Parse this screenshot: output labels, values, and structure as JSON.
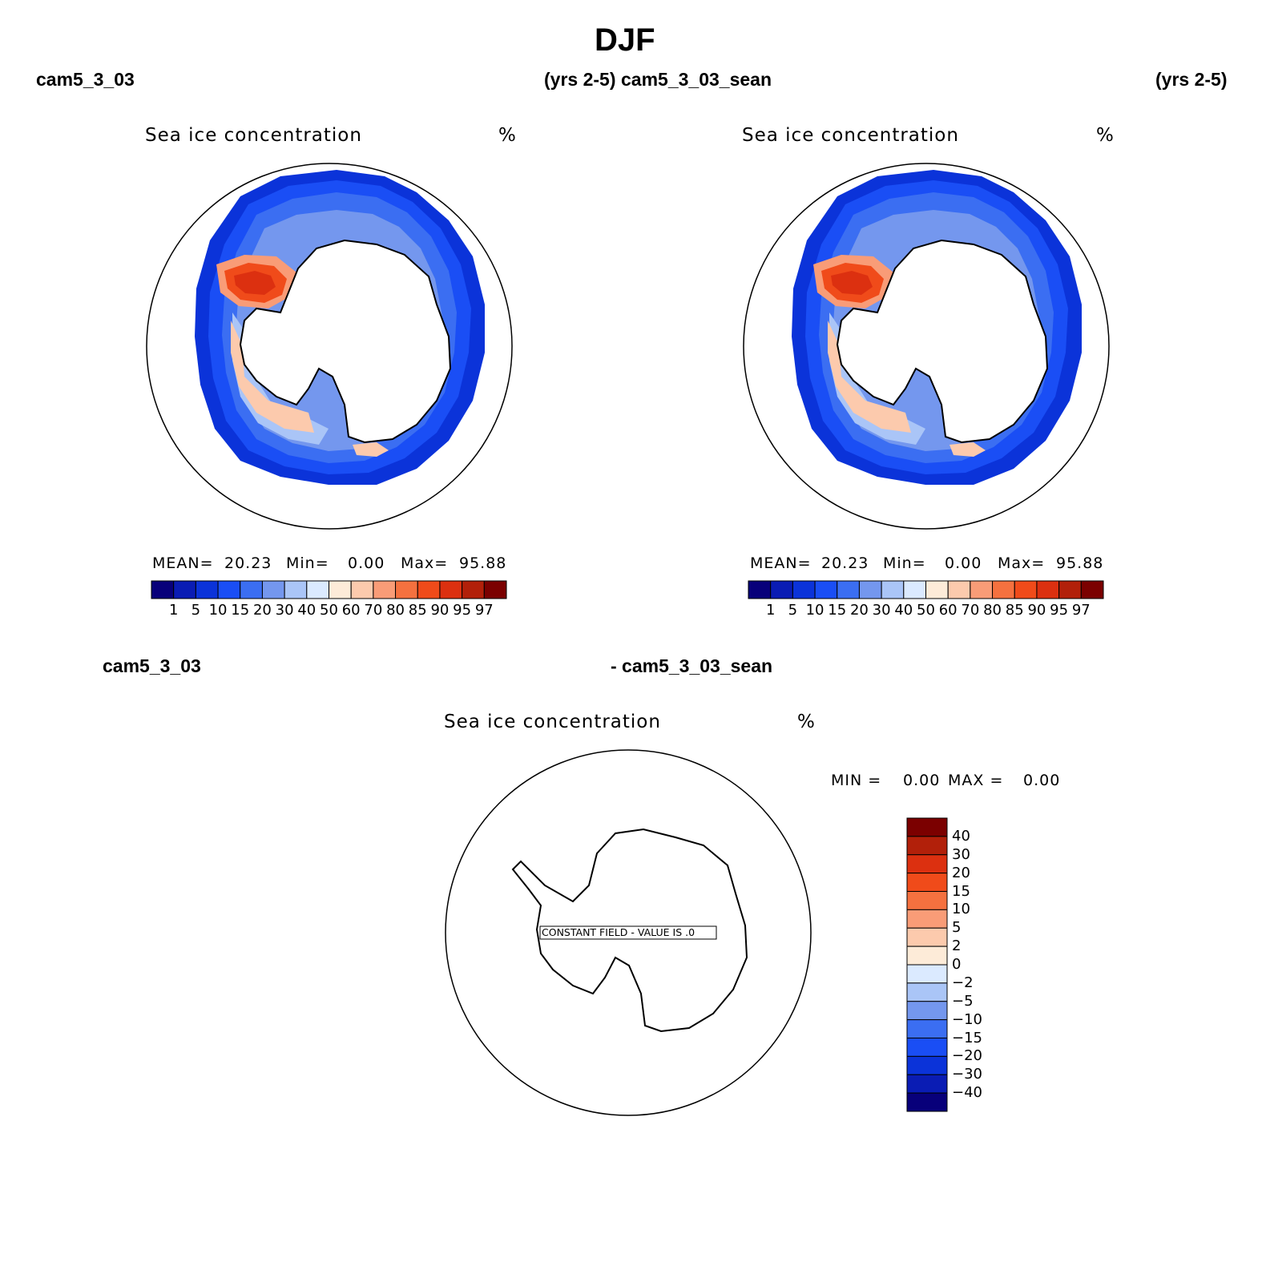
{
  "figure": {
    "title": "DJF"
  },
  "panels": [
    {
      "case_name": "cam5_3_03",
      "years": "(yrs 2-5)",
      "variable": "Sea ice concentration",
      "units": "%",
      "stats": {
        "mean_label": "MEAN=",
        "mean_value": "20.23",
        "min_label": "Min=",
        "min_value": "0.00",
        "max_label": "Max=",
        "max_value": "95.88"
      },
      "colorbar": {
        "levels": [
          "1",
          "5",
          "10",
          "15",
          "20",
          "30",
          "40",
          "50",
          "60",
          "70",
          "80",
          "85",
          "90",
          "95",
          "97"
        ],
        "colors": [
          "#08007a",
          "#0a1cb4",
          "#0b33d9",
          "#1a4ef5",
          "#3b6ef2",
          "#7497ee",
          "#aac5f7",
          "#dbeaff",
          "#fdebd8",
          "#fccaad",
          "#f99c77",
          "#f5713f",
          "#f04b1a",
          "#dc3010",
          "#b2200a",
          "#7b0000"
        ]
      }
    },
    {
      "case_name": "cam5_3_03_sean",
      "years": "(yrs 2-5)",
      "variable": "Sea ice concentration",
      "units": "%",
      "stats": {
        "mean_label": "MEAN=",
        "mean_value": "20.23",
        "min_label": "Min=",
        "min_value": "0.00",
        "max_label": "Max=",
        "max_value": "95.88"
      },
      "colorbar": {
        "levels": [
          "1",
          "5",
          "10",
          "15",
          "20",
          "30",
          "40",
          "50",
          "60",
          "70",
          "80",
          "85",
          "90",
          "95",
          "97"
        ],
        "colors": [
          "#08007a",
          "#0a1cb4",
          "#0b33d9",
          "#1a4ef5",
          "#3b6ef2",
          "#7497ee",
          "#aac5f7",
          "#dbeaff",
          "#fdebd8",
          "#fccaad",
          "#f99c77",
          "#f5713f",
          "#f04b1a",
          "#dc3010",
          "#b2200a",
          "#7b0000"
        ]
      }
    }
  ],
  "difference": {
    "left_label": "cam5_3_03",
    "right_label": "- cam5_3_03_sean",
    "variable": "Sea ice concentration",
    "units": "%",
    "min_label": "MIN =",
    "min_value": "0.00",
    "max_label": "MAX =",
    "max_value": "0.00",
    "constant_field_text": "CONSTANT FIELD - VALUE IS .0",
    "colorbar": {
      "levels": [
        "40",
        "30",
        "20",
        "15",
        "10",
        "5",
        "2",
        "0",
        "−2",
        "−5",
        "−10",
        "−15",
        "−20",
        "−30",
        "−40"
      ],
      "colors": [
        "#7b0000",
        "#b2200a",
        "#dc3010",
        "#f04b1a",
        "#f5713f",
        "#f99c77",
        "#fccaad",
        "#fdebd8",
        "#dbeaff",
        "#aac5f7",
        "#7497ee",
        "#3b6ef2",
        "#1a4ef5",
        "#0b33d9",
        "#0a1cb4",
        "#08007a"
      ]
    }
  },
  "chart_data": {
    "type": "heatmap",
    "title": "DJF",
    "projection": "south polar stereographic",
    "maps": [
      {
        "case": "cam5_3_03",
        "period": "(yrs 2-5)",
        "field": "Sea ice concentration",
        "units": "%",
        "mean": 20.23,
        "min": 0.0,
        "max": 95.88,
        "contour_levels": [
          1,
          5,
          10,
          15,
          20,
          30,
          40,
          50,
          60,
          70,
          80,
          85,
          90,
          95,
          97
        ]
      },
      {
        "case": "cam5_3_03_sean",
        "period": "(yrs 2-5)",
        "field": "Sea ice concentration",
        "units": "%",
        "mean": 20.23,
        "min": 0.0,
        "max": 95.88,
        "contour_levels": [
          1,
          5,
          10,
          15,
          20,
          30,
          40,
          50,
          60,
          70,
          80,
          85,
          90,
          95,
          97
        ]
      },
      {
        "case": "cam5_3_03 - cam5_3_03_sean",
        "field": "Sea ice concentration",
        "units": "%",
        "min": 0.0,
        "max": 0.0,
        "constant_value": 0.0,
        "contour_levels": [
          -40,
          -30,
          -20,
          -15,
          -10,
          -5,
          -2,
          0,
          2,
          5,
          10,
          15,
          20,
          30,
          40
        ]
      }
    ]
  }
}
